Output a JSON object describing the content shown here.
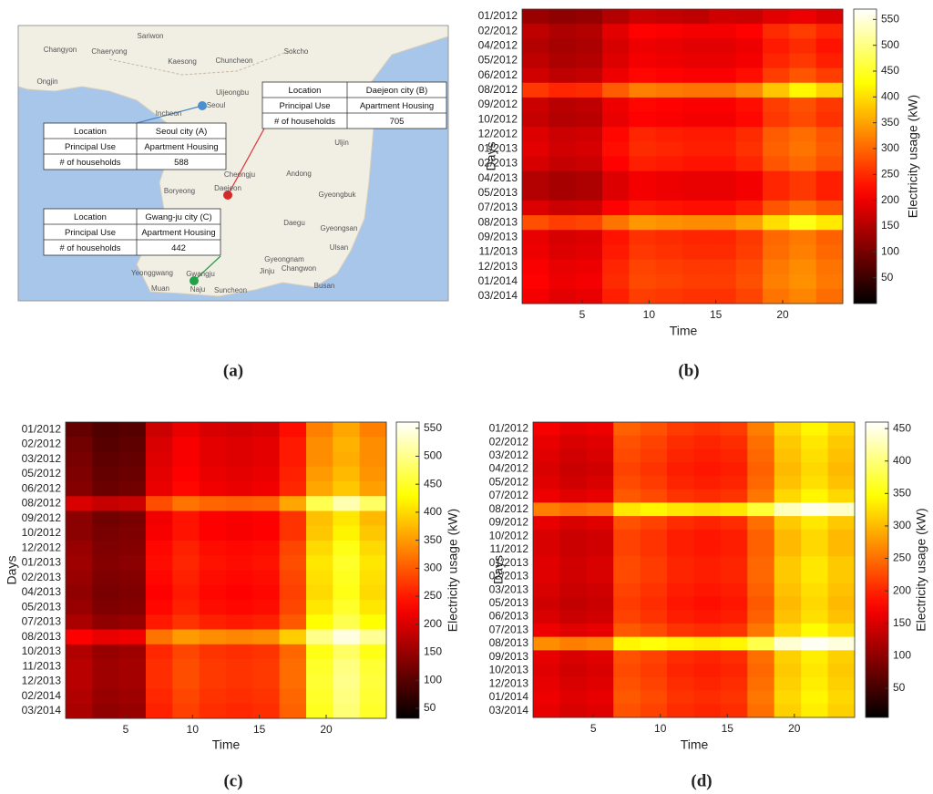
{
  "panel_labels": [
    "(a)",
    "(b)",
    "(c)",
    "(d)"
  ],
  "map": {
    "places": [
      "Changyon",
      "Chaeryong",
      "Sariwon",
      "Kaesong",
      "Chuncheon",
      "Ongjin",
      "Sokcho",
      "Uijeongbu",
      "Seoul",
      "Incheon",
      "Uljin",
      "Cheongju",
      "Andong",
      "Boryeong",
      "Daejeon",
      "Gyeongbuk",
      "Daegu",
      "Gyeongsan",
      "Ulsan",
      "Yeonggwang",
      "Gwangju",
      "Jinju",
      "Changwon",
      "Busan",
      "Muan",
      "Naju",
      "Suncheon",
      "Gyeongnam"
    ],
    "tables": [
      {
        "rows": [
          [
            "Location",
            "Seoul city (A)"
          ],
          [
            "Principal Use",
            "Apartment Housing"
          ],
          [
            "# of households",
            588
          ]
        ]
      },
      {
        "rows": [
          [
            "Location",
            "Daejeon city (B)"
          ],
          [
            "Principal Use",
            "Apartment Housing"
          ],
          [
            "# of households",
            705
          ]
        ]
      },
      {
        "rows": [
          [
            "Location",
            "Gwang-ju city (C)"
          ],
          [
            "Principal Use",
            "Apartment Housing"
          ],
          [
            "# of households",
            442
          ]
        ]
      }
    ]
  },
  "chart_data": [
    {
      "type": "heatmap",
      "x_label": "Time",
      "y_label": "Days",
      "colorbar_label": "Electricity usage (kW)",
      "colormap": "hot",
      "x": [
        1.5,
        3.5,
        5.5,
        7.5,
        9.5,
        11.5,
        13.5,
        15.5,
        17.5,
        19.5,
        21.5,
        23.5
      ],
      "xlim": [
        0.5,
        24.5
      ],
      "xticks": [
        5,
        10,
        15,
        20
      ],
      "y": [
        "01/2012",
        "02/2012",
        "04/2012",
        "05/2012",
        "06/2012",
        "08/2012",
        "09/2012",
        "10/2012",
        "12/2012",
        "01/2013",
        "02/2013",
        "04/2013",
        "05/2013",
        "07/2013",
        "08/2013",
        "09/2013",
        "11/2013",
        "12/2013",
        "01/2014",
        "03/2014"
      ],
      "clim": [
        0,
        570
      ],
      "cticks": [
        50,
        100,
        150,
        200,
        250,
        300,
        350,
        400,
        450,
        500,
        550
      ],
      "z": [
        [
          130,
          120,
          125,
          150,
          170,
          165,
          160,
          175,
          170,
          190,
          200,
          185
        ],
        [
          160,
          145,
          150,
          190,
          215,
          210,
          205,
          205,
          215,
          250,
          265,
          245
        ],
        [
          150,
          140,
          145,
          180,
          200,
          195,
          190,
          190,
          200,
          235,
          250,
          230
        ],
        [
          160,
          145,
          150,
          185,
          205,
          200,
          195,
          195,
          205,
          245,
          260,
          240
        ],
        [
          175,
          160,
          165,
          200,
          220,
          215,
          210,
          210,
          225,
          265,
          285,
          265
        ],
        [
          260,
          245,
          250,
          290,
          320,
          315,
          310,
          310,
          330,
          380,
          420,
          390
        ],
        [
          170,
          155,
          160,
          200,
          220,
          215,
          210,
          210,
          225,
          265,
          280,
          260
        ],
        [
          165,
          150,
          155,
          195,
          215,
          210,
          205,
          205,
          220,
          260,
          275,
          255
        ],
        [
          185,
          170,
          175,
          220,
          245,
          240,
          235,
          235,
          250,
          290,
          305,
          285
        ],
        [
          190,
          175,
          180,
          225,
          250,
          245,
          240,
          240,
          255,
          295,
          310,
          290
        ],
        [
          180,
          165,
          170,
          215,
          240,
          235,
          230,
          230,
          245,
          285,
          300,
          280
        ],
        [
          150,
          140,
          145,
          185,
          205,
          200,
          195,
          195,
          205,
          245,
          260,
          240
        ],
        [
          150,
          140,
          145,
          185,
          205,
          200,
          195,
          195,
          205,
          245,
          260,
          240
        ],
        [
          185,
          170,
          175,
          215,
          235,
          230,
          225,
          225,
          240,
          285,
          305,
          285
        ],
        [
          280,
          265,
          270,
          310,
          340,
          335,
          330,
          330,
          350,
          400,
          440,
          410
        ],
        [
          195,
          180,
          185,
          230,
          255,
          250,
          245,
          245,
          260,
          300,
          315,
          295
        ],
        [
          200,
          185,
          190,
          235,
          260,
          255,
          250,
          250,
          265,
          305,
          320,
          300
        ],
        [
          210,
          195,
          200,
          245,
          270,
          265,
          260,
          260,
          275,
          315,
          330,
          310
        ],
        [
          215,
          200,
          205,
          250,
          275,
          270,
          265,
          265,
          280,
          320,
          335,
          315
        ],
        [
          205,
          190,
          195,
          240,
          265,
          260,
          255,
          255,
          270,
          310,
          325,
          305
        ]
      ]
    },
    {
      "type": "heatmap",
      "x_label": "Time",
      "y_label": "Days",
      "colorbar_label": "Electricity usage (kW)",
      "colormap": "hot",
      "x": [
        1.5,
        3.5,
        5.5,
        7.5,
        9.5,
        11.5,
        13.5,
        15.5,
        17.5,
        19.5,
        21.5,
        23.5
      ],
      "xlim": [
        0.5,
        24.5
      ],
      "xticks": [
        5,
        10,
        15,
        20
      ],
      "y": [
        "01/2012",
        "02/2012",
        "03/2012",
        "05/2012",
        "06/2012",
        "08/2012",
        "09/2012",
        "10/2012",
        "12/2012",
        "01/2013",
        "02/2013",
        "04/2013",
        "05/2013",
        "07/2013",
        "08/2013",
        "10/2013",
        "11/2013",
        "12/2013",
        "02/2014",
        "03/2014"
      ],
      "clim": [
        32,
        561
      ],
      "cticks": [
        50,
        100,
        150,
        200,
        250,
        300,
        350,
        400,
        450,
        500,
        550
      ],
      "z": [
        [
          110,
          95,
          100,
          190,
          215,
          200,
          195,
          200,
          240,
          330,
          360,
          330
        ],
        [
          120,
          100,
          105,
          200,
          225,
          210,
          205,
          210,
          250,
          340,
          370,
          340
        ],
        [
          125,
          105,
          110,
          205,
          225,
          210,
          205,
          210,
          250,
          340,
          365,
          340
        ],
        [
          130,
          110,
          115,
          210,
          230,
          215,
          210,
          215,
          255,
          350,
          375,
          345
        ],
        [
          135,
          115,
          120,
          215,
          235,
          220,
          215,
          220,
          260,
          360,
          385,
          355
        ],
        [
          200,
          185,
          190,
          290,
          320,
          310,
          305,
          310,
          360,
          470,
          520,
          480
        ],
        [
          140,
          120,
          125,
          220,
          245,
          230,
          225,
          230,
          270,
          380,
          410,
          375
        ],
        [
          140,
          125,
          130,
          225,
          245,
          230,
          225,
          230,
          270,
          385,
          420,
          385
        ],
        [
          150,
          130,
          135,
          235,
          255,
          240,
          235,
          240,
          285,
          400,
          440,
          400
        ],
        [
          155,
          135,
          140,
          240,
          260,
          245,
          240,
          245,
          290,
          410,
          450,
          410
        ],
        [
          150,
          130,
          135,
          235,
          255,
          240,
          235,
          240,
          285,
          405,
          445,
          405
        ],
        [
          145,
          125,
          130,
          230,
          250,
          235,
          230,
          235,
          280,
          400,
          440,
          400
        ],
        [
          150,
          130,
          135,
          235,
          255,
          240,
          235,
          240,
          285,
          410,
          450,
          410
        ],
        [
          165,
          145,
          150,
          250,
          270,
          255,
          250,
          255,
          300,
          430,
          470,
          430
        ],
        [
          230,
          215,
          220,
          320,
          350,
          340,
          335,
          340,
          390,
          500,
          545,
          505
        ],
        [
          170,
          150,
          155,
          260,
          285,
          270,
          265,
          270,
          310,
          440,
          480,
          440
        ],
        [
          175,
          155,
          160,
          265,
          290,
          275,
          270,
          275,
          315,
          450,
          495,
          455
        ],
        [
          175,
          155,
          160,
          265,
          290,
          275,
          270,
          275,
          315,
          455,
          500,
          460
        ],
        [
          170,
          150,
          155,
          260,
          285,
          270,
          265,
          270,
          310,
          450,
          495,
          455
        ],
        [
          165,
          145,
          150,
          255,
          280,
          265,
          260,
          265,
          305,
          445,
          490,
          450
        ]
      ]
    },
    {
      "type": "heatmap",
      "x_label": "Time",
      "y_label": "Days",
      "colorbar_label": "Electricity usage (kW)",
      "colormap": "hot",
      "x": [
        1.5,
        3.5,
        5.5,
        7.5,
        9.5,
        11.5,
        13.5,
        15.5,
        17.5,
        19.5,
        21.5,
        23.5
      ],
      "xlim": [
        0.5,
        24.5
      ],
      "xticks": [
        5,
        10,
        15,
        20
      ],
      "y": [
        "01/2012",
        "02/2012",
        "03/2012",
        "04/2012",
        "05/2012",
        "07/2012",
        "08/2012",
        "09/2012",
        "10/2012",
        "11/2012",
        "01/2013",
        "02/2013",
        "03/2013",
        "05/2013",
        "06/2013",
        "07/2013",
        "08/2013",
        "09/2013",
        "10/2013",
        "12/2013",
        "01/2014",
        "03/2014"
      ],
      "clim": [
        5,
        460
      ],
      "cticks": [
        50,
        100,
        150,
        200,
        250,
        300,
        350,
        400,
        450
      ],
      "z": [
        [
          170,
          160,
          165,
          240,
          230,
          215,
          210,
          215,
          260,
          320,
          340,
          320
        ],
        [
          160,
          150,
          155,
          230,
          220,
          205,
          200,
          205,
          250,
          310,
          330,
          310
        ],
        [
          155,
          145,
          150,
          225,
          215,
          200,
          195,
          200,
          245,
          305,
          325,
          305
        ],
        [
          150,
          140,
          145,
          220,
          210,
          195,
          190,
          195,
          240,
          300,
          320,
          300
        ],
        [
          155,
          145,
          150,
          225,
          215,
          200,
          195,
          200,
          245,
          305,
          325,
          305
        ],
        [
          165,
          155,
          160,
          235,
          225,
          210,
          205,
          210,
          255,
          320,
          340,
          320
        ],
        [
          260,
          250,
          255,
          330,
          340,
          330,
          325,
          330,
          370,
          430,
          450,
          435
        ],
        [
          160,
          150,
          155,
          230,
          220,
          205,
          200,
          205,
          250,
          310,
          330,
          310
        ],
        [
          150,
          140,
          145,
          220,
          210,
          195,
          190,
          195,
          240,
          300,
          320,
          300
        ],
        [
          150,
          140,
          145,
          220,
          210,
          195,
          190,
          195,
          240,
          300,
          320,
          300
        ],
        [
          155,
          145,
          150,
          225,
          215,
          200,
          195,
          200,
          245,
          310,
          330,
          310
        ],
        [
          155,
          145,
          150,
          225,
          215,
          200,
          195,
          200,
          245,
          310,
          330,
          310
        ],
        [
          150,
          140,
          145,
          220,
          210,
          195,
          190,
          195,
          240,
          305,
          325,
          305
        ],
        [
          145,
          135,
          140,
          215,
          205,
          190,
          185,
          190,
          235,
          300,
          320,
          300
        ],
        [
          150,
          140,
          145,
          220,
          210,
          195,
          190,
          195,
          240,
          305,
          325,
          305
        ],
        [
          165,
          155,
          160,
          235,
          225,
          210,
          205,
          210,
          255,
          320,
          345,
          325
        ],
        [
          270,
          260,
          265,
          340,
          350,
          340,
          335,
          340,
          380,
          440,
          455,
          445
        ],
        [
          160,
          150,
          155,
          230,
          220,
          205,
          200,
          205,
          250,
          315,
          335,
          315
        ],
        [
          155,
          145,
          150,
          225,
          215,
          200,
          195,
          200,
          245,
          310,
          330,
          310
        ],
        [
          160,
          150,
          155,
          230,
          220,
          205,
          200,
          205,
          250,
          315,
          335,
          315
        ],
        [
          165,
          155,
          160,
          235,
          225,
          210,
          205,
          210,
          255,
          320,
          340,
          320
        ],
        [
          160,
          150,
          155,
          230,
          220,
          205,
          200,
          205,
          250,
          315,
          335,
          315
        ]
      ]
    }
  ]
}
